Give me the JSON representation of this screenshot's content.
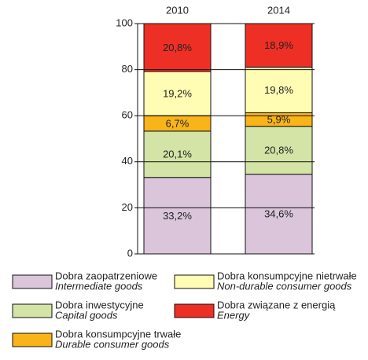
{
  "chart_data": {
    "type": "stacked_bar",
    "categories": [
      "2010",
      "2014"
    ],
    "series": [
      {
        "name": "Dobra zaopatrzeniowe",
        "name_en": "Intermediate goods",
        "color": "#dac5da",
        "values": [
          33.2,
          34.6
        ],
        "value_labels": [
          "33,2%",
          "34,6%"
        ]
      },
      {
        "name": "Dobra inwestycyjne",
        "name_en": "Capital goods",
        "color": "#d3e4a6",
        "values": [
          20.1,
          20.8
        ],
        "value_labels": [
          "20,1%",
          "20,8%"
        ]
      },
      {
        "name": "Dobra konsumpcyjne trwałe",
        "name_en": "Durable consumer goods",
        "color": "#f8b418",
        "values": [
          6.7,
          5.9
        ],
        "value_labels": [
          "6,7%",
          "5,9%"
        ]
      },
      {
        "name": "Dobra konsumpcyjne nietrwałe",
        "name_en": "Non-durable consumer goods",
        "color": "#fffcb3",
        "values": [
          19.2,
          19.8
        ],
        "value_labels": [
          "19,2%",
          "19,8%"
        ]
      },
      {
        "name": "Dobra związane z energią",
        "name_en": "Energy",
        "color": "#ee2f25",
        "values": [
          20.8,
          18.9
        ],
        "value_labels": [
          "20,8%",
          "18,9%"
        ]
      }
    ],
    "ylim": [
      0,
      100
    ],
    "yticks": [
      0,
      20,
      40,
      60,
      80,
      100
    ],
    "grid": true
  }
}
